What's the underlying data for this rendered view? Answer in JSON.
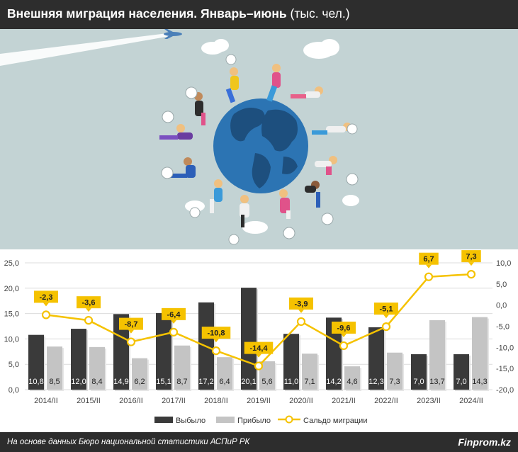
{
  "header": {
    "title_bold": "Внешняя миграция населения. Январь–июнь",
    "title_rest": " (тыс. чел.)"
  },
  "illustration": {
    "icon": "globe-with-travelers-illustration"
  },
  "chart_data": {
    "type": "bar",
    "categories": [
      "2014/II",
      "2015/II",
      "2016/II",
      "2017/II",
      "2018/II",
      "2019/II",
      "2020/II",
      "2021/II",
      "2022/II",
      "2023/II",
      "2024/II"
    ],
    "series": [
      {
        "name": "Выбыло",
        "type": "bar",
        "color": "#3a3a3a",
        "values": [
          10.8,
          12.0,
          14.9,
          15.1,
          17.2,
          20.1,
          11.0,
          14.2,
          12.3,
          7.0,
          7.0
        ],
        "labels": [
          "10,8",
          "12,0",
          "14,9",
          "15,1",
          "17,2",
          "20,1",
          "11,0",
          "14,2",
          "12,3",
          "7,0",
          "7,0"
        ]
      },
      {
        "name": "Прибыло",
        "type": "bar",
        "color": "#c4c4c4",
        "values": [
          8.5,
          8.4,
          6.2,
          8.7,
          6.4,
          5.6,
          7.1,
          4.6,
          7.3,
          13.7,
          14.3
        ],
        "labels": [
          "8,5",
          "8,4",
          "6,2",
          "8,7",
          "6,4",
          "5,6",
          "7,1",
          "4,6",
          "7,3",
          "13,7",
          "14,3"
        ]
      },
      {
        "name": "Сальдо миграции",
        "type": "line",
        "axis": "right",
        "color": "#f5c200",
        "values": [
          -2.3,
          -3.6,
          -8.7,
          -6.4,
          -10.8,
          -14.4,
          -3.9,
          -9.6,
          -5.1,
          6.7,
          7.3
        ],
        "labels": [
          "-2,3",
          "-3,6",
          "-8,7",
          "-6,4",
          "-10,8",
          "-14,4",
          "-3,9",
          "-9,6",
          "-5,1",
          "6,7",
          "7,3"
        ]
      }
    ],
    "y_left": {
      "min": 0,
      "max": 25,
      "ticks": [
        "0,0",
        "5,0",
        "10,0",
        "15,0",
        "20,0",
        "25,0"
      ]
    },
    "y_right": {
      "min": -20,
      "max": 10,
      "ticks": [
        "-20,0",
        "-15,0",
        "-10,0",
        "-5,0",
        "0,0",
        "5,0",
        "10,0"
      ]
    },
    "grid": true,
    "legend_position": "bottom"
  },
  "footer": {
    "source": "На основе данных Бюро национальной статистики АСПиР РК",
    "brand": "Finprom.kz"
  }
}
